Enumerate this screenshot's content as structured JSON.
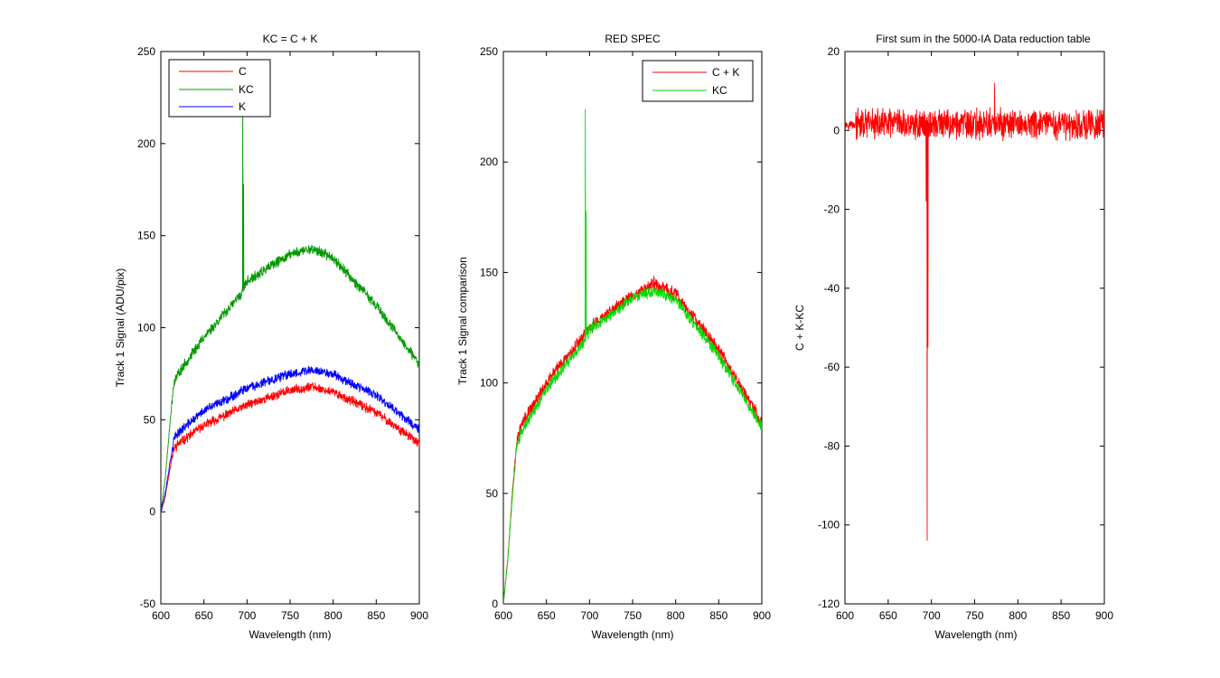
{
  "chart_data": [
    {
      "type": "line",
      "title": "KC = C + K",
      "xlabel": "Wavelength (nm)",
      "ylabel": "Track 1 Signal (ADU/pix)",
      "xlim": [
        600,
        900
      ],
      "ylim": [
        -50,
        250
      ],
      "xticks": [
        "600",
        "650",
        "700",
        "750",
        "800",
        "850",
        "900"
      ],
      "yticks": [
        "-50",
        "0",
        "50",
        "100",
        "150",
        "200",
        "250"
      ],
      "grid": false,
      "legend_position": "top-left",
      "series": [
        {
          "name": "C",
          "color": "#ff0000",
          "noise": 2.2,
          "seed": 11,
          "x": [
            600,
            605,
            610,
            615,
            620,
            650,
            700,
            750,
            775,
            800,
            850,
            900
          ],
          "y": [
            0,
            8,
            22,
            34,
            37,
            47,
            58,
            66,
            68,
            65,
            54,
            37
          ]
        },
        {
          "name": "KC",
          "color": "#009900",
          "noise": 2.4,
          "seed": 23,
          "x": [
            600,
            605,
            610,
            615,
            620,
            650,
            693,
            700,
            750,
            775,
            800,
            850,
            900
          ],
          "y": [
            0,
            18,
            45,
            70,
            75,
            95,
            118,
            125,
            140,
            143,
            138,
            112,
            80
          ],
          "spikes": [
            {
              "x": 695,
              "y": 232
            },
            {
              "x": 696,
              "y": 178
            }
          ]
        },
        {
          "name": "K",
          "color": "#0000ff",
          "noise": 2.2,
          "seed": 37,
          "x": [
            600,
            605,
            610,
            615,
            620,
            650,
            700,
            750,
            775,
            800,
            850,
            900
          ],
          "y": [
            0,
            10,
            25,
            39,
            43,
            55,
            67,
            75,
            77,
            75,
            63,
            45
          ]
        }
      ]
    },
    {
      "type": "line",
      "title": "RED SPEC",
      "xlabel": "Wavelength (nm)",
      "ylabel": "Track 1 Signal comparison",
      "xlim": [
        600,
        900
      ],
      "ylim": [
        0,
        250
      ],
      "xticks": [
        "600",
        "650",
        "700",
        "750",
        "800",
        "850",
        "900"
      ],
      "yticks": [
        "0",
        "50",
        "100",
        "150",
        "200",
        "250"
      ],
      "grid": false,
      "legend_position": "top-right",
      "series": [
        {
          "name": "C + K",
          "color": "#ff0000",
          "noise": 2.6,
          "seed": 53,
          "x": [
            600,
            605,
            610,
            615,
            620,
            650,
            700,
            750,
            775,
            800,
            850,
            900
          ],
          "y": [
            0,
            20,
            48,
            72,
            80,
            100,
            125,
            140,
            145,
            140,
            115,
            82
          ]
        },
        {
          "name": "KC",
          "color": "#00dd00",
          "noise": 2.2,
          "seed": 71,
          "x": [
            600,
            605,
            610,
            615,
            620,
            650,
            693,
            700,
            750,
            775,
            800,
            850,
            900
          ],
          "y": [
            0,
            19,
            46,
            70,
            77,
            97,
            118,
            124,
            138,
            142,
            138,
            112,
            80
          ],
          "spikes": [
            {
              "x": 695,
              "y": 224
            },
            {
              "x": 696,
              "y": 178
            }
          ]
        }
      ]
    },
    {
      "type": "line",
      "title": "First sum in the 5000-IA Data reduction table",
      "xlabel": "Wavelength (nm)",
      "ylabel": "C + K-KC",
      "xlim": [
        600,
        900
      ],
      "ylim": [
        -120,
        20
      ],
      "xticks": [
        "600",
        "650",
        "700",
        "750",
        "800",
        "850",
        "900"
      ],
      "yticks": [
        "-120",
        "-100",
        "-80",
        "-60",
        "-40",
        "-20",
        "0",
        "20"
      ],
      "grid": false,
      "series": [
        {
          "color": "#ff0000",
          "noise": 3.2,
          "seed": 97,
          "x": [
            600,
            900
          ],
          "y": [
            1.5,
            1.5
          ],
          "spikes": [
            {
              "x": 694,
              "y": -18
            },
            {
              "x": 695,
              "y": -104
            },
            {
              "x": 696,
              "y": -55
            },
            {
              "x": 773,
              "y": 12
            }
          ]
        }
      ]
    }
  ]
}
